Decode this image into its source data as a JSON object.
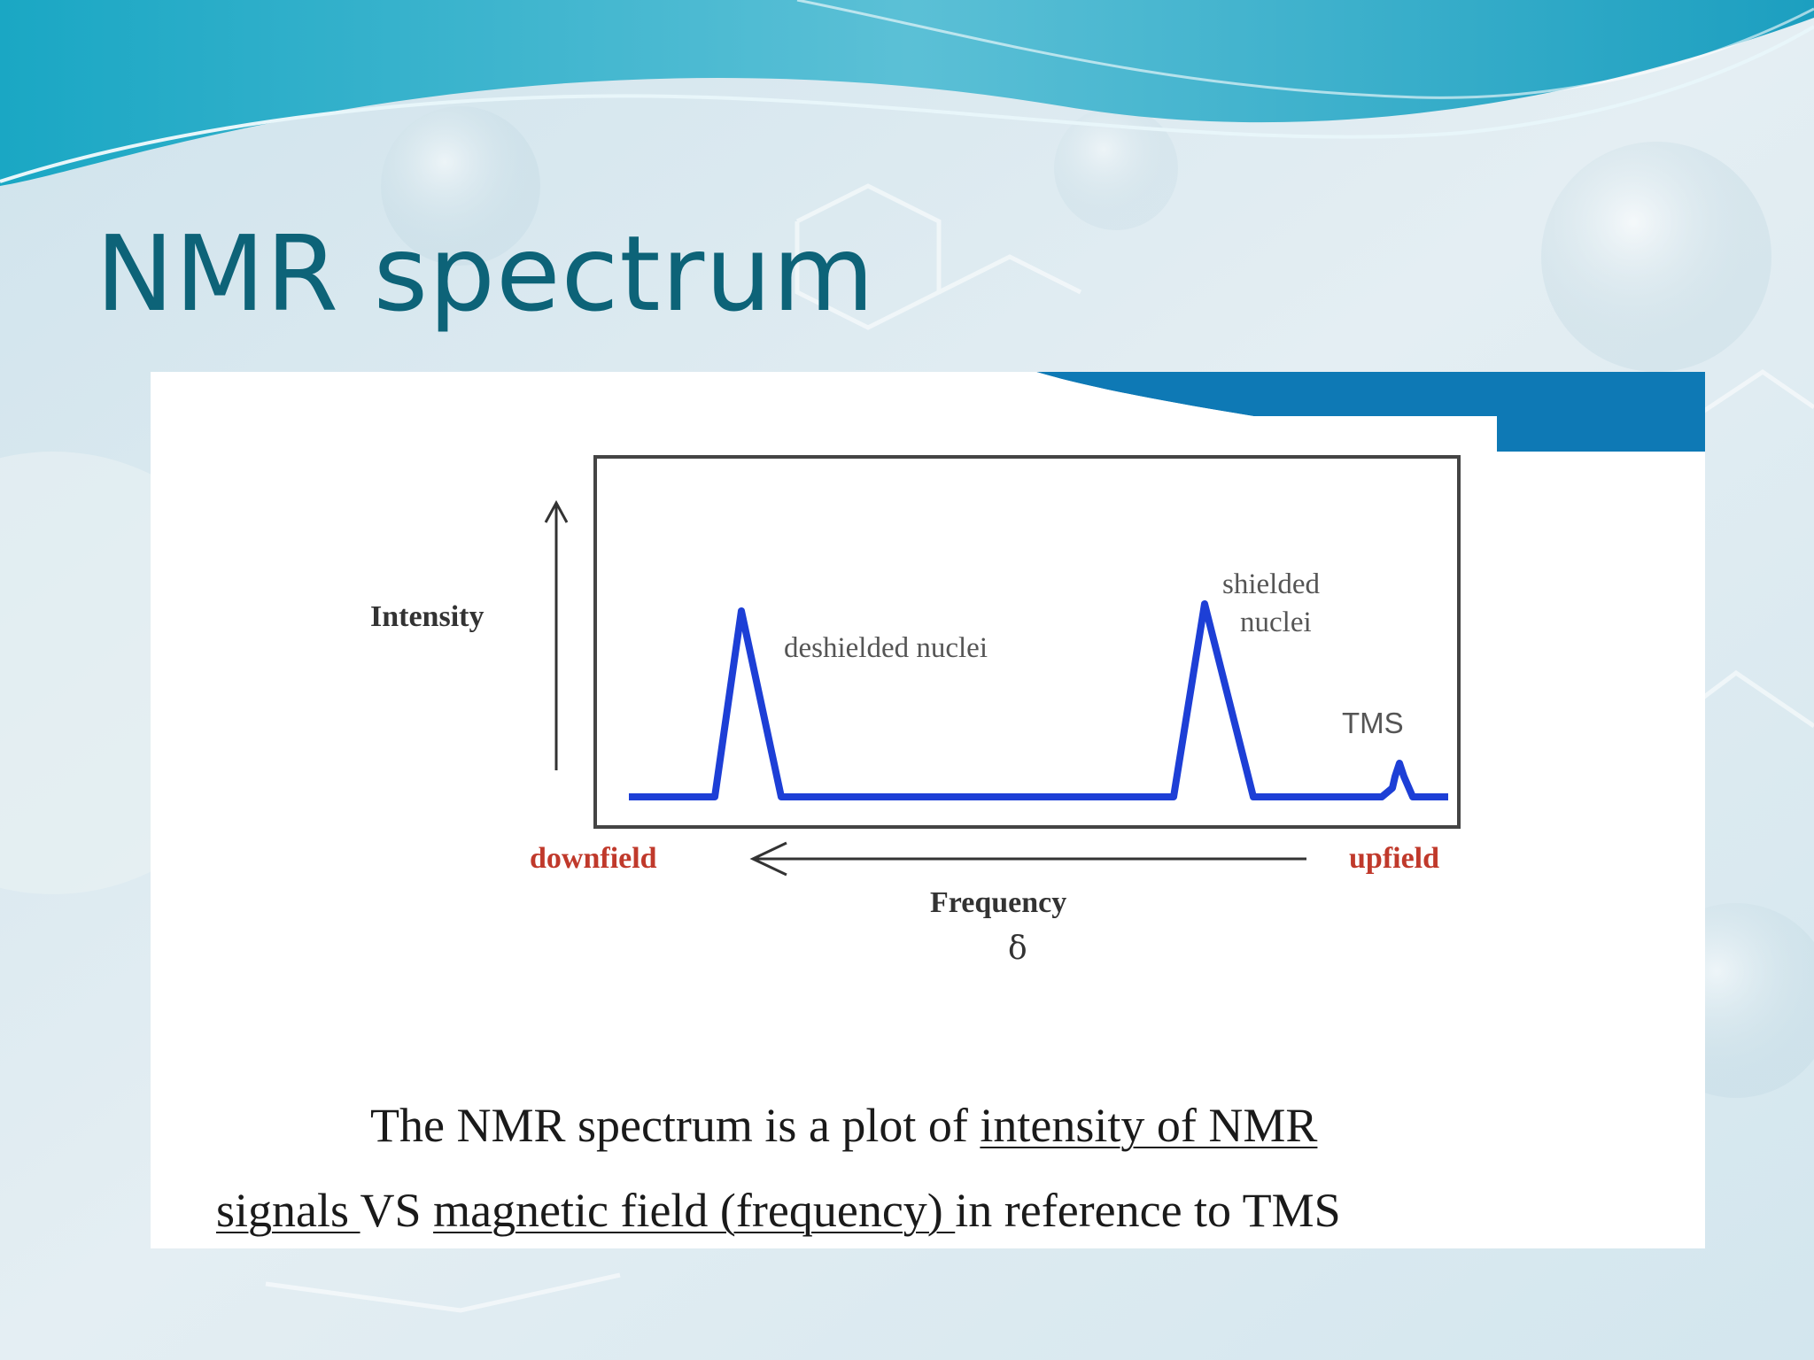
{
  "slide": {
    "title": "NMR spectrum",
    "caption": {
      "line1_plain": "The NMR spectrum is a plot of ",
      "line1_underlined": "intensity of NMR",
      "line2_underlined_a": "signals ",
      "line2_plain_a": "VS ",
      "line2_underlined_b": "magnetic field (frequency) ",
      "line2_plain_b": "in reference to TMS"
    }
  },
  "diagram": {
    "y_axis_label": "Intensity",
    "peak_labels": {
      "deshielded": "deshielded nuclei",
      "shielded_line1": "shielded",
      "shielded_line2": "nuclei",
      "tms": "TMS"
    },
    "x_axis": {
      "left": "downfield",
      "right": "upfield",
      "label": "Frequency",
      "symbol": "δ"
    },
    "colors": {
      "signal": "#1d3fd6",
      "field_labels": "#c0392b",
      "title": "#0d6378"
    }
  }
}
